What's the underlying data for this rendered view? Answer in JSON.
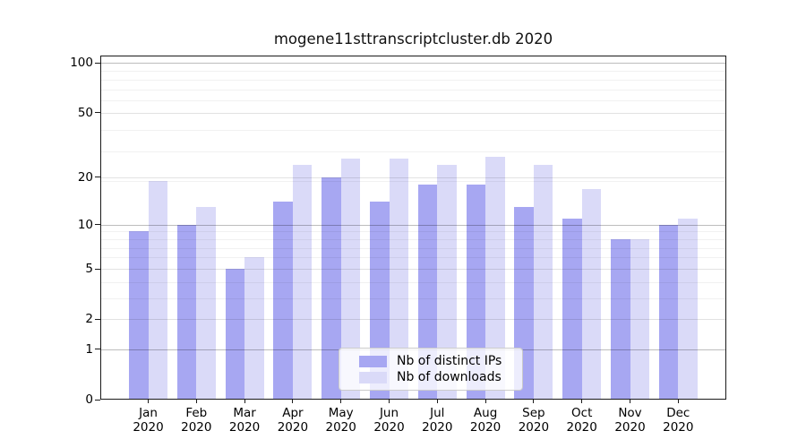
{
  "chart_data": {
    "type": "bar",
    "title": "mogene11sttranscriptcluster.db 2020",
    "categories": [
      "Jan",
      "Feb",
      "Mar",
      "Apr",
      "May",
      "Jun",
      "Jul",
      "Aug",
      "Sep",
      "Oct",
      "Nov",
      "Dec"
    ],
    "x_tick_sub_label": "2020",
    "series": [
      {
        "name": "Nb of distinct IPs",
        "color": "#a7a7f2",
        "values": [
          9,
          10,
          5,
          14,
          20,
          14,
          18,
          18,
          13,
          11,
          8,
          10
        ]
      },
      {
        "name": "Nb of downloads",
        "color": "#dadaf8",
        "values": [
          19,
          13,
          6,
          24,
          26,
          26,
          24,
          27,
          24,
          17,
          8,
          11
        ]
      }
    ],
    "y_ticks": [
      0,
      1,
      2,
      5,
      10,
      20,
      50,
      100
    ],
    "yscale": "log1p",
    "ylim": [
      0,
      110
    ],
    "xlabel": "",
    "ylabel": "",
    "grid": true,
    "legend_position": "lower center",
    "axis_color": "#1a1a1a",
    "background": "#ffffff"
  }
}
